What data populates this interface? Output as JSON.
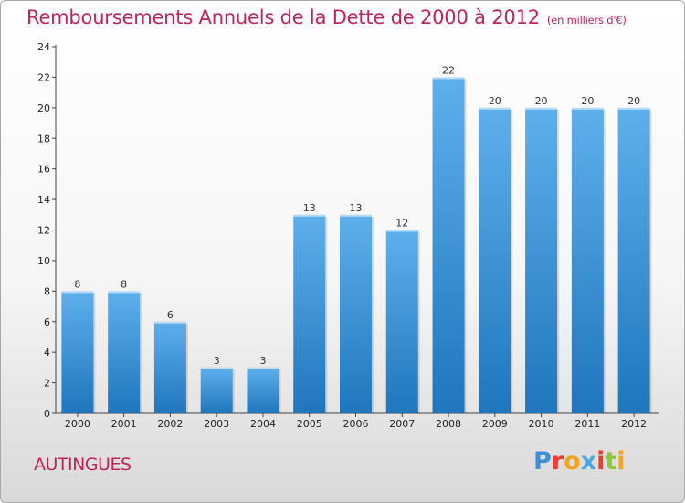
{
  "title": "Remboursements Annuels de la Dette de 2000 à 2012",
  "subtitle": "(en milliers d'€)",
  "commune": "AUTINGUES",
  "logo": {
    "letters": [
      "P",
      "r",
      "o",
      "x",
      "i",
      "t",
      "i"
    ],
    "colors": [
      "#3f8fd6",
      "#e8402c",
      "#f2a51a",
      "#4aa8e0",
      "#e8402c",
      "#8dc63f",
      "#f2a51a"
    ]
  },
  "colors": {
    "bar_top": "#5eb0ec",
    "bar_bottom": "#1f76bd",
    "title": "#c0245c"
  },
  "chart_data": {
    "type": "bar",
    "title": "Remboursements Annuels de la Dette de 2000 à 2012",
    "categories": [
      "2000",
      "2001",
      "2002",
      "2003",
      "2004",
      "2005",
      "2006",
      "2007",
      "2008",
      "2009",
      "2010",
      "2011",
      "2012"
    ],
    "values": [
      8,
      8,
      6,
      3,
      3,
      13,
      13,
      12,
      22,
      20,
      20,
      20,
      20
    ],
    "ylim": [
      0,
      24
    ],
    "yticks": [
      0,
      2,
      4,
      6,
      8,
      10,
      12,
      14,
      16,
      18,
      20,
      22,
      24
    ],
    "grid": false,
    "show_value_labels": true
  }
}
